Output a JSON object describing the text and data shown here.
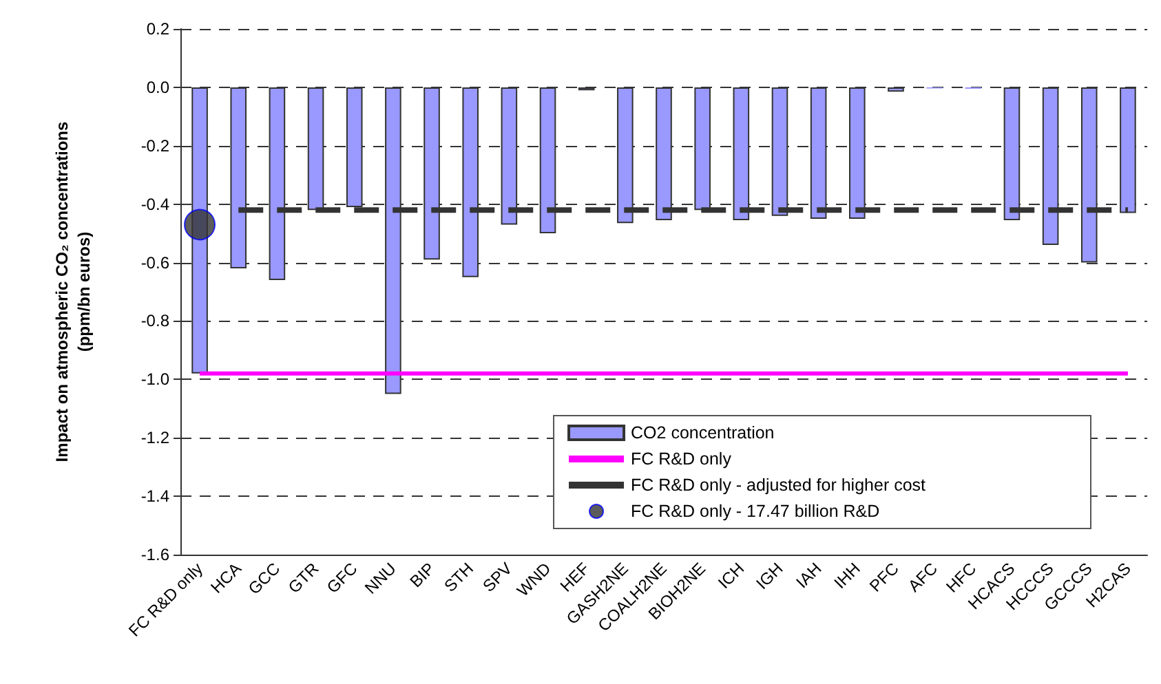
{
  "chart_data": {
    "type": "bar",
    "ylabel": "Impact on atmospheric CO₂ concentrations\n(ppm/bn euros)",
    "categories": [
      "FC R&D only",
      "HCA",
      "GCC",
      "GTR",
      "GFC",
      "NNU",
      "BIP",
      "STH",
      "SPV",
      "WND",
      "HEF",
      "GASH2NE",
      "COALH2NE",
      "BIOH2NE",
      "ICH",
      "IGH",
      "IAH",
      "IHH",
      "PFC",
      "AFC",
      "HFC",
      "HCACS",
      "HCCCS",
      "GCCCS",
      "H2CAS"
    ],
    "series": [
      {
        "name": "CO2 concentration",
        "color": "#9999ff",
        "values": [
          -0.98,
          -0.62,
          -0.66,
          -0.42,
          -0.41,
          -1.05,
          -0.59,
          -0.65,
          -0.47,
          -0.5,
          -0.01,
          -0.465,
          -0.455,
          -0.42,
          -0.455,
          -0.44,
          -0.45,
          -0.45,
          -0.015,
          -0.004,
          -0.005,
          -0.455,
          -0.54,
          -0.6,
          -0.43
        ]
      },
      {
        "name": "FC R&D only",
        "type": "line",
        "color": "#ff00ff",
        "line_style": "solid",
        "marker": "none",
        "values": [
          -0.98,
          -0.98,
          -0.98,
          -0.98,
          -0.98,
          -0.98,
          -0.98,
          -0.98,
          -0.98,
          -0.98,
          -0.98,
          -0.98,
          -0.98,
          -0.98,
          -0.98,
          -0.98,
          -0.98,
          -0.98,
          -0.98,
          -0.98,
          -0.98,
          -0.98,
          -0.98,
          -0.98,
          -0.98
        ]
      },
      {
        "name": "FC R&D only - adjusted for higher cost",
        "type": "line",
        "color": "#333333",
        "line_style": "dashed",
        "marker": "none",
        "values": [
          null,
          -0.42,
          -0.42,
          -0.42,
          -0.42,
          -0.42,
          -0.42,
          -0.42,
          -0.42,
          -0.42,
          -0.42,
          -0.42,
          -0.42,
          -0.42,
          -0.42,
          -0.42,
          -0.42,
          -0.42,
          -0.42,
          -0.42,
          -0.42,
          -0.42,
          -0.42,
          -0.42,
          -0.42
        ]
      },
      {
        "name": "FC R&D only - 17.47 billion R&D",
        "type": "scatter",
        "color": "#333333",
        "marker": "circle",
        "x": [
          "FC R&D only"
        ],
        "values": [
          -0.47
        ]
      }
    ],
    "ylim": [
      -1.6,
      0.2
    ],
    "yticks": [
      {
        "value": 0.2,
        "label": "0.2"
      },
      {
        "value": 0,
        "label": "0.0"
      },
      {
        "value": -0.2,
        "label": "-0.2"
      },
      {
        "value": -0.4,
        "label": "-0.4"
      },
      {
        "value": -0.6,
        "label": "-0.6"
      },
      {
        "value": -0.8,
        "label": "-0.8"
      },
      {
        "value": -1,
        "label": "-1.0"
      },
      {
        "value": -1.2,
        "label": "-1.2"
      },
      {
        "value": -1.4,
        "label": "-1.4"
      },
      {
        "value": -1.6,
        "label": "-1.6"
      }
    ],
    "grid": "y",
    "legend": "bottom right"
  }
}
